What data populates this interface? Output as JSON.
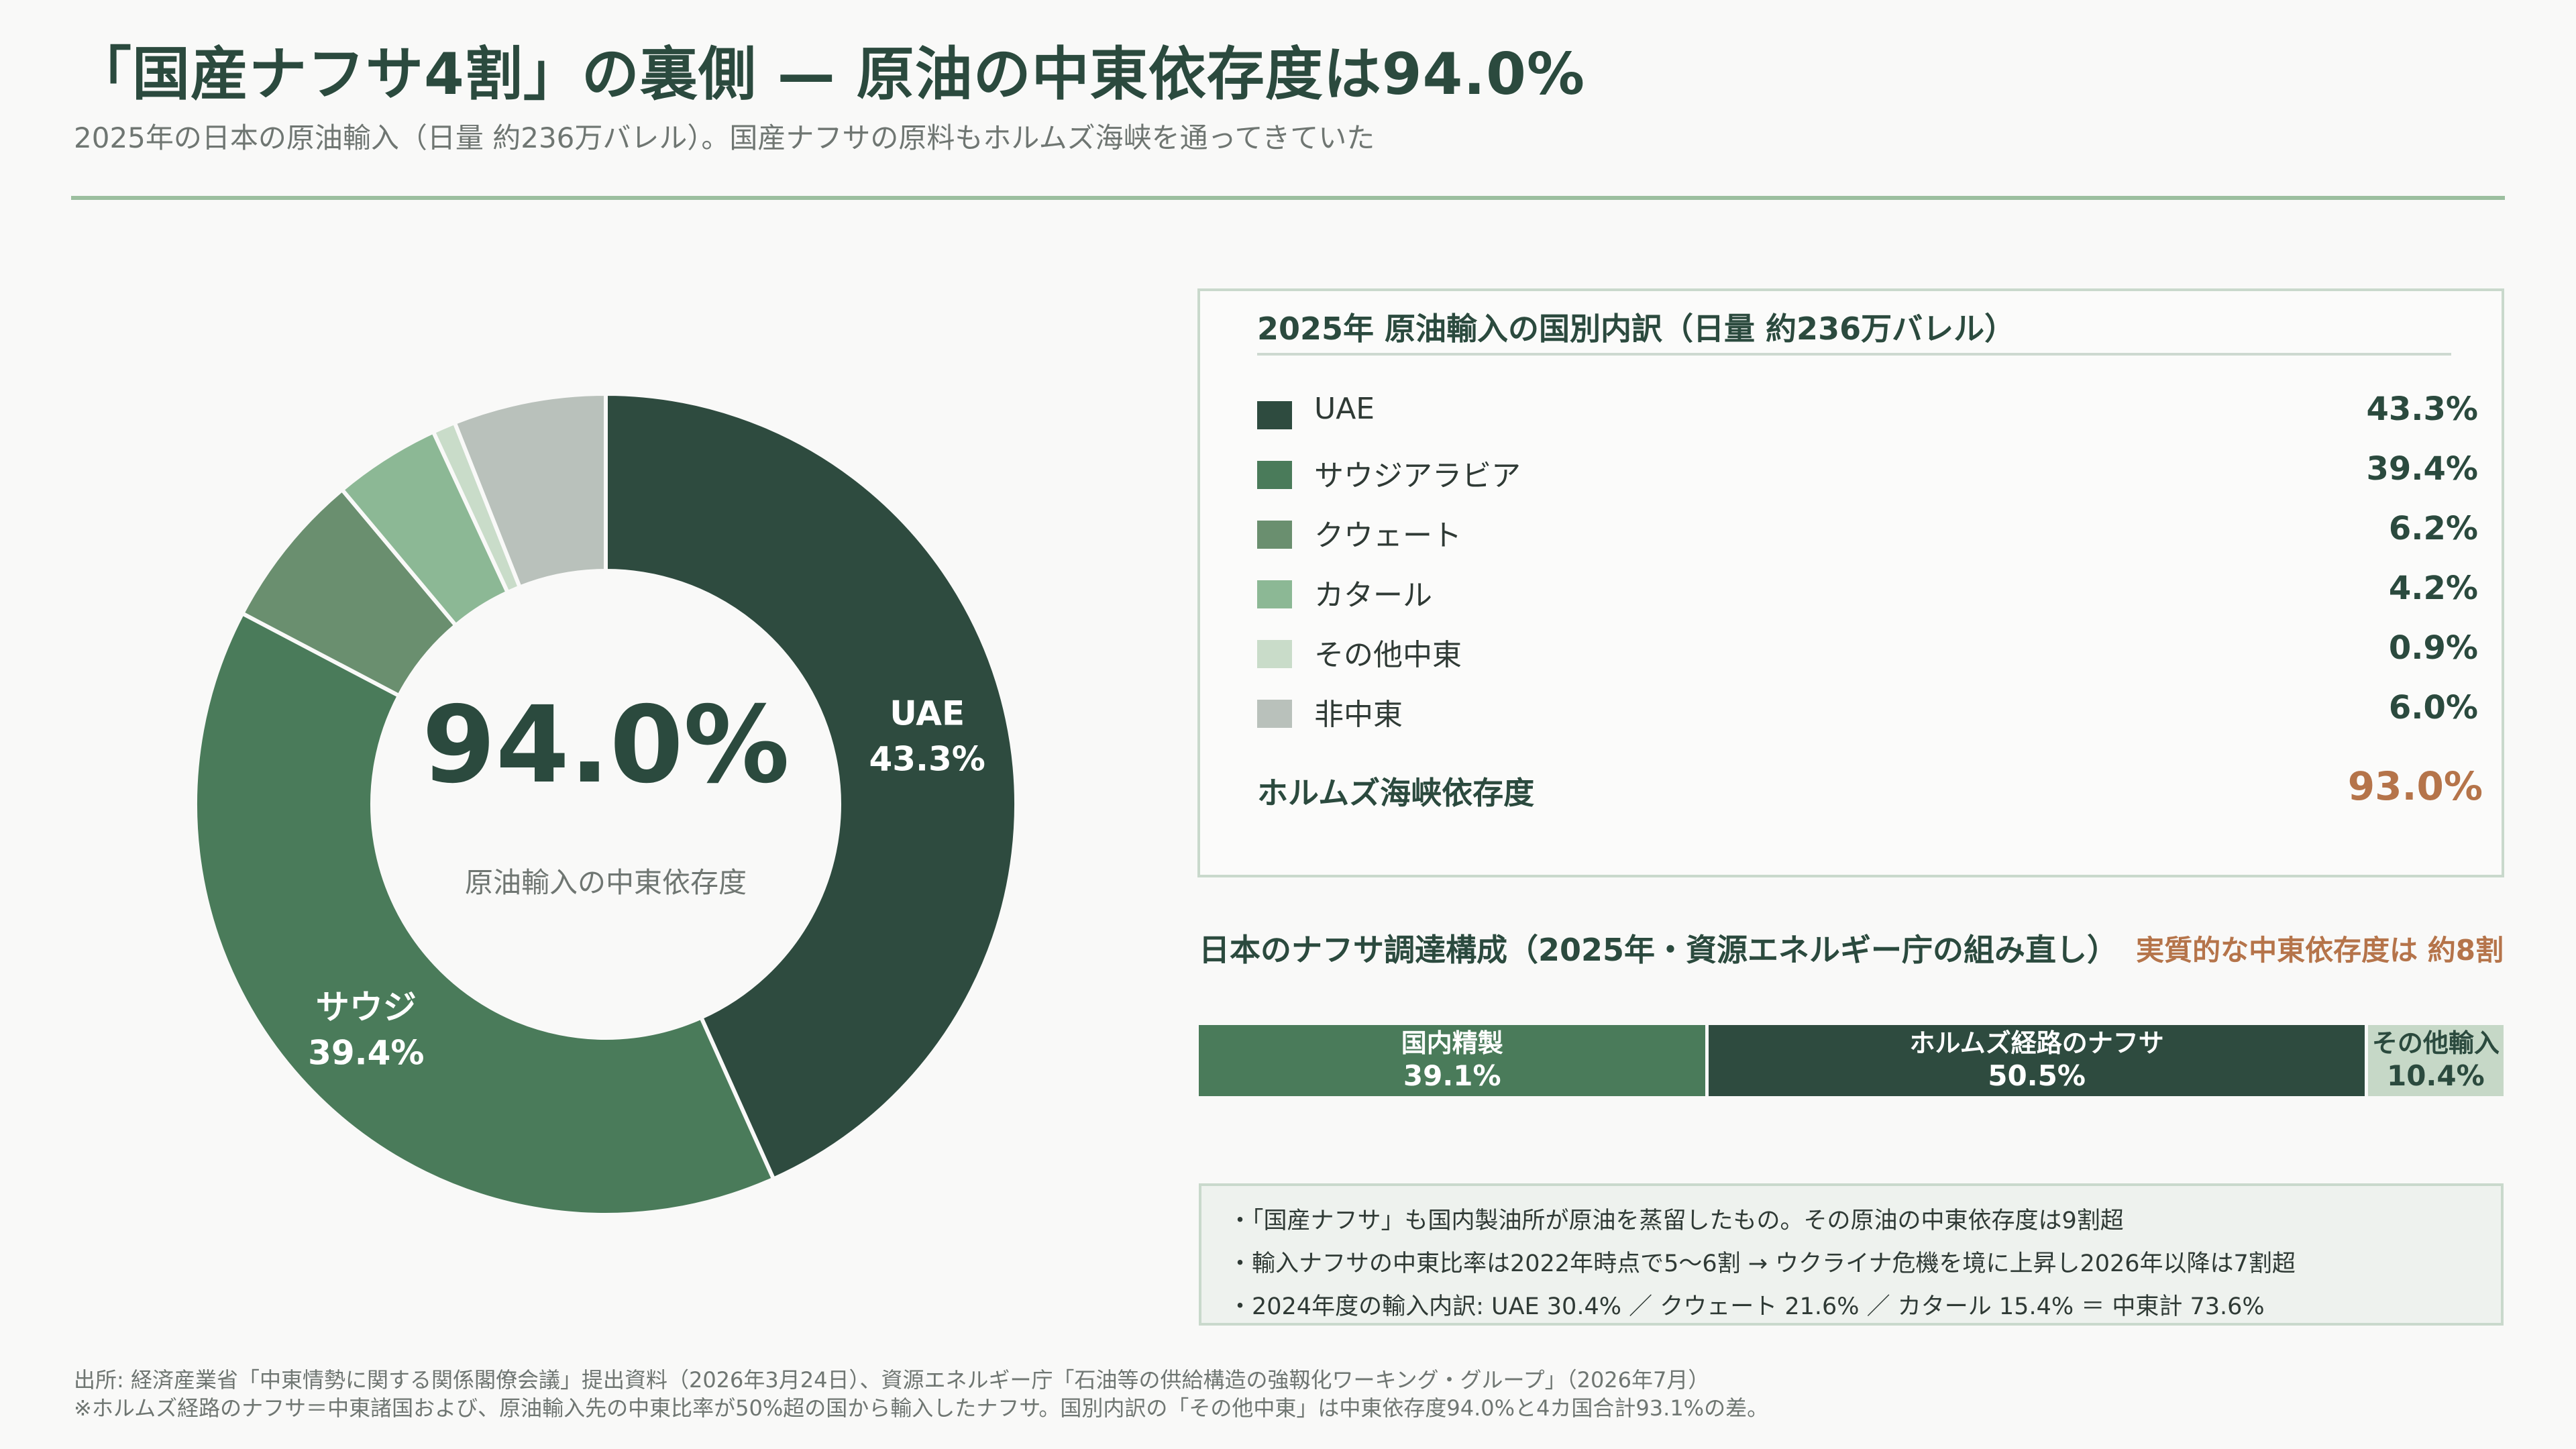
{
  "header": {
    "title": "「国産ナフサ4割」の裏側 — 原油の中東依存度は94.0%",
    "subtitle": "2025年の日本の原油輸入（日量 約236万バレル）。国産ナフサの原料もホルムズ海峡を通ってきていた"
  },
  "chart_data": [
    {
      "type": "pie",
      "variant": "donut",
      "center_value": "94.0%",
      "center_label": "原油輸入の中東依存度",
      "slices": [
        {
          "name": "UAE",
          "value": 43.3,
          "color": "#2e4b3f",
          "label": "UAE",
          "value_label": "43.3%"
        },
        {
          "name": "サウジアラビア",
          "value": 39.4,
          "color": "#4a7b5a",
          "label": "サウジ",
          "value_label": "39.4%"
        },
        {
          "name": "クウェート",
          "value": 6.2,
          "color": "#6a8f6f",
          "label": "",
          "value_label": ""
        },
        {
          "name": "カタール",
          "value": 4.2,
          "color": "#8cb895",
          "label": "",
          "value_label": ""
        },
        {
          "name": "その他中東",
          "value": 0.9,
          "color": "#c9dcc9",
          "label": "",
          "value_label": ""
        },
        {
          "name": "非中東",
          "value": 6.0,
          "color": "#b9c1bb",
          "label": "",
          "value_label": ""
        }
      ]
    },
    {
      "type": "bar",
      "variant": "stacked-100",
      "title": "日本のナフサ調達構成（2025年・資源エネルギー庁の組み直し）",
      "annotation": "実質的な中東依存度は 約8割",
      "categories": [
        "国内精製",
        "ホルムズ経路のナフサ",
        "その他輸入"
      ],
      "values": [
        39.1,
        50.5,
        10.4
      ],
      "value_labels": [
        "39.1%",
        "50.5%",
        "10.4%"
      ],
      "colors": [
        "#4a7b5a",
        "#2e4b3f",
        "#c6d8c7"
      ]
    }
  ],
  "legend": {
    "heading": "2025年 原油輸入の国別内訳（日量 約236万バレル）",
    "rows": [
      {
        "label": "UAE",
        "value": "43.3%",
        "color": "#2e4b3f"
      },
      {
        "label": "サウジアラビア",
        "value": "39.4%",
        "color": "#4a7b5a"
      },
      {
        "label": "クウェート",
        "value": "6.2%",
        "color": "#6a8f6f"
      },
      {
        "label": "カタール",
        "value": "4.2%",
        "color": "#8cb895"
      },
      {
        "label": "その他中東",
        "value": "0.9%",
        "color": "#c9dcc9"
      },
      {
        "label": "非中東",
        "value": "6.0%",
        "color": "#b9c1bb"
      }
    ],
    "hormuz_label": "ホルムズ海峡依存度",
    "hormuz_value": "93.0%"
  },
  "notes": [
    "・「国産ナフサ」も国内製油所が原油を蒸留したもの。その原油の中東依存度は9割超",
    "・輸入ナフサの中東比率は2022年時点で5〜6割 → ウクライナ危機を境に上昇し2026年以降は7割超",
    "・2024年度の輸入内訳: UAE 30.4% ／ クウェート 21.6% ／ カタール 15.4% ＝ 中東計 73.6%"
  ],
  "footer": {
    "source": "出所: 経済産業省「中東情勢に関する関係閣僚会議」提出資料（2026年3月24日）、資源エネルギー庁「石油等の供給構造の強靱化ワーキング・グループ」（2026年7月）",
    "note": "※ホルムズ経路のナフサ＝中東諸国および、原油輸入先の中東比率が50%超の国から輸入したナフサ。国別内訳の「その他中東」は中東依存度94.0%と4カ国合計93.1%の差。"
  },
  "colors": {
    "text_dark": "#2b4a3e",
    "accent_orange": "#b5744a",
    "rule_green": "#9cbf9f"
  }
}
